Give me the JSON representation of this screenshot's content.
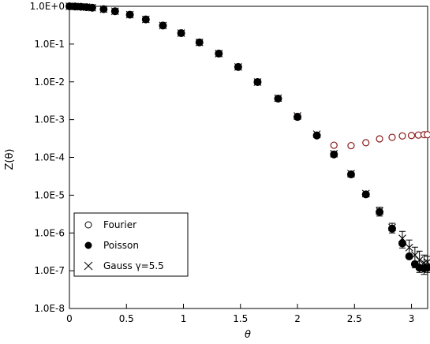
{
  "chart_data": {
    "type": "scatter",
    "xlabel": "θ",
    "ylabel": "Z(θ)",
    "x_axis": {
      "min": 0,
      "max": 3.14159,
      "ticks": [
        0,
        0.5,
        1,
        1.5,
        2,
        2.5,
        3
      ],
      "tick_labels": [
        "0",
        "0.5",
        "1",
        "1.5",
        "2",
        "2.5",
        "3"
      ]
    },
    "y_axis": {
      "scale": "log",
      "min": 1e-08,
      "max": 1,
      "ticks": [
        1,
        0.1,
        0.01,
        0.001,
        0.0001,
        1e-05,
        1e-06,
        1e-07,
        1e-08
      ],
      "tick_labels": [
        "1.0E+0",
        "1.0E-1",
        "1.0E-2",
        "1.0E-3",
        "1.0E-4",
        "1.0E-5",
        "1.0E-6",
        "1.0E-7",
        "1.0E-8"
      ]
    },
    "legend": {
      "position": "bottom-left",
      "entries": [
        "Fourier",
        "Poisson",
        "Gauss γ=5.5"
      ]
    },
    "series": [
      {
        "name": "Fourier",
        "marker": "open-circle",
        "color": "#8b1a1a",
        "points": [
          [
            0.0,
            1.0
          ],
          [
            0.05,
            0.99
          ],
          [
            0.1,
            0.97
          ],
          [
            0.15,
            0.95
          ],
          [
            0.2,
            0.92
          ],
          [
            0.3,
            0.84
          ],
          [
            0.4,
            0.74
          ],
          [
            0.53,
            0.6
          ],
          [
            0.67,
            0.45
          ],
          [
            0.82,
            0.31
          ],
          [
            0.98,
            0.195
          ],
          [
            1.14,
            0.111
          ],
          [
            1.31,
            0.056
          ],
          [
            1.48,
            0.0248
          ],
          [
            1.65,
            0.0099
          ],
          [
            1.83,
            0.0036
          ],
          [
            2.0,
            0.00122
          ],
          [
            2.17,
            0.00039
          ],
          [
            2.32,
            0.00021
          ],
          [
            2.47,
            0.000205
          ],
          [
            2.6,
            0.000245
          ],
          [
            2.72,
            0.00031
          ],
          [
            2.83,
            0.00034
          ],
          [
            2.92,
            0.00037
          ],
          [
            3.0,
            0.00038
          ],
          [
            3.06,
            0.00039
          ],
          [
            3.11,
            0.0004
          ],
          [
            3.14,
            0.0004
          ]
        ]
      },
      {
        "name": "Poisson",
        "marker": "filled-circle",
        "color": "#000000",
        "points": [
          [
            0.0,
            1.0
          ],
          [
            0.05,
            0.99
          ],
          [
            0.1,
            0.97
          ],
          [
            0.15,
            0.95
          ],
          [
            0.2,
            0.92
          ],
          [
            0.3,
            0.84
          ],
          [
            0.4,
            0.74
          ],
          [
            0.53,
            0.6
          ],
          [
            0.67,
            0.45
          ],
          [
            0.82,
            0.31
          ],
          [
            0.98,
            0.195
          ],
          [
            1.14,
            0.111
          ],
          [
            1.31,
            0.056
          ],
          [
            1.48,
            0.0248
          ],
          [
            1.65,
            0.0099
          ],
          [
            1.83,
            0.0036
          ],
          [
            2.0,
            0.00118
          ],
          [
            2.17,
            0.00038
          ],
          [
            2.32,
            0.00012
          ],
          [
            2.47,
            3.55e-05
          ],
          [
            2.6,
            1.05e-05
          ],
          [
            2.72,
            3.6e-06
          ],
          [
            2.83,
            1.3e-06
          ],
          [
            2.92,
            5.3e-07
          ],
          [
            2.98,
            2.4e-07
          ],
          [
            3.03,
            1.5e-07
          ],
          [
            3.07,
            1.2e-07
          ],
          [
            3.11,
            1.15e-07
          ],
          [
            3.14,
            1.2e-07
          ]
        ]
      },
      {
        "name": "Gauss γ=5.5",
        "marker": "cross",
        "color": "#000000",
        "points": [
          [
            0.0,
            1.0
          ],
          [
            0.05,
            0.99
          ],
          [
            0.1,
            0.97
          ],
          [
            0.15,
            0.95
          ],
          [
            0.2,
            0.92
          ],
          [
            0.3,
            0.84
          ],
          [
            0.4,
            0.74
          ],
          [
            0.53,
            0.6
          ],
          [
            0.67,
            0.45
          ],
          [
            0.82,
            0.31
          ],
          [
            0.98,
            0.195
          ],
          [
            1.14,
            0.111
          ],
          [
            1.31,
            0.056
          ],
          [
            1.48,
            0.0248
          ],
          [
            1.65,
            0.0099
          ],
          [
            1.83,
            0.0037
          ],
          [
            2.0,
            0.00125
          ],
          [
            2.17,
            0.00041
          ],
          [
            2.32,
            0.000125
          ],
          [
            2.47,
            3.7e-05
          ],
          [
            2.6,
            1.1e-05
          ],
          [
            2.72,
            3.8e-06
          ],
          [
            2.83,
            1.4e-06
          ],
          [
            2.92,
            7.2e-07
          ],
          [
            2.98,
            4.1e-07
          ],
          [
            3.03,
            2.6e-07
          ],
          [
            3.07,
            1.9e-07
          ],
          [
            3.11,
            1.6e-07
          ],
          [
            3.14,
            1.7e-07
          ]
        ],
        "error_bars": [
          [
            2.72,
            2.8e-06,
            4.8e-06
          ],
          [
            2.83,
            1e-06,
            1.8e-06
          ],
          [
            2.92,
            4e-07,
            1.1e-06
          ],
          [
            2.98,
            2.2e-07,
            6.5e-07
          ],
          [
            3.03,
            1.2e-07,
            4.2e-07
          ],
          [
            3.07,
            9e-08,
            3.3e-07
          ],
          [
            3.11,
            8e-08,
            2.6e-07
          ],
          [
            3.14,
            9e-08,
            2.4e-07
          ]
        ]
      }
    ]
  }
}
